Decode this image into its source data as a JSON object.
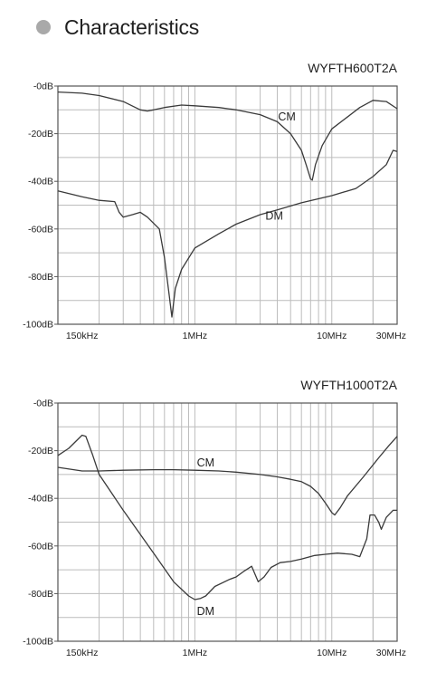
{
  "page": {
    "heading": "Characteristics"
  },
  "colors": {
    "bullet": "#a9a9a9",
    "grid": "#bcbcbc",
    "frame": "#555555",
    "curve": "#3a3a3a"
  },
  "chart_data": [
    {
      "type": "line",
      "title": "WYFTH600T2A",
      "x_scale": "log",
      "xlim": [
        0.1,
        30
      ],
      "ylim": [
        -100,
        0
      ],
      "x_ticks": [
        {
          "value": 0.15,
          "label": "150kHz"
        },
        {
          "value": 1,
          "label": "1MHz"
        },
        {
          "value": 10,
          "label": "10MHz"
        },
        {
          "value": 30,
          "label": "30MHz"
        }
      ],
      "y_ticks": [
        {
          "value": 0,
          "label": "-0dB"
        },
        {
          "value": -20,
          "label": "-20dB"
        },
        {
          "value": -40,
          "label": "-40dB"
        },
        {
          "value": -60,
          "label": "-60dB"
        },
        {
          "value": -80,
          "label": "-80dB"
        },
        {
          "value": -100,
          "label": "-100dB"
        }
      ],
      "grid": true,
      "series": [
        {
          "name": "CM",
          "points": [
            [
              0.1,
              -2.5
            ],
            [
              0.15,
              -3
            ],
            [
              0.2,
              -4
            ],
            [
              0.3,
              -6.5
            ],
            [
              0.4,
              -10
            ],
            [
              0.45,
              -10.5
            ],
            [
              0.5,
              -10
            ],
            [
              0.6,
              -9
            ],
            [
              0.8,
              -8
            ],
            [
              1,
              -8.3
            ],
            [
              1.5,
              -9
            ],
            [
              2,
              -10
            ],
            [
              3,
              -12
            ],
            [
              4,
              -15
            ],
            [
              5,
              -20
            ],
            [
              6,
              -27
            ],
            [
              6.5,
              -33
            ],
            [
              7,
              -39
            ],
            [
              7.2,
              -39.5
            ],
            [
              7.6,
              -33
            ],
            [
              8.5,
              -25
            ],
            [
              10,
              -18
            ],
            [
              13,
              -13
            ],
            [
              16,
              -9
            ],
            [
              20,
              -6
            ],
            [
              25,
              -6.5
            ],
            [
              30,
              -9.5
            ]
          ],
          "label_at": [
            4.7,
            -13
          ]
        },
        {
          "name": "DM",
          "points": [
            [
              0.1,
              -44
            ],
            [
              0.15,
              -46.5
            ],
            [
              0.2,
              -48
            ],
            [
              0.26,
              -48.5
            ],
            [
              0.28,
              -53
            ],
            [
              0.3,
              -55
            ],
            [
              0.35,
              -54
            ],
            [
              0.4,
              -53
            ],
            [
              0.45,
              -55
            ],
            [
              0.55,
              -60
            ],
            [
              0.6,
              -72
            ],
            [
              0.65,
              -88
            ],
            [
              0.68,
              -97
            ],
            [
              0.72,
              -85
            ],
            [
              0.8,
              -77
            ],
            [
              1,
              -68
            ],
            [
              1.5,
              -62
            ],
            [
              2,
              -58
            ],
            [
              3,
              -54
            ],
            [
              4,
              -52
            ],
            [
              6,
              -49
            ],
            [
              10,
              -46
            ],
            [
              15,
              -43
            ],
            [
              20,
              -38
            ],
            [
              25,
              -33
            ],
            [
              28,
              -27
            ],
            [
              30,
              -27.5
            ]
          ],
          "label_at": [
            3.8,
            -54.5
          ]
        }
      ]
    },
    {
      "type": "line",
      "title": "WYFTH1000T2A",
      "x_scale": "log",
      "xlim": [
        0.1,
        30
      ],
      "ylim": [
        -100,
        0
      ],
      "x_ticks": [
        {
          "value": 0.15,
          "label": "150kHz"
        },
        {
          "value": 1,
          "label": "1MHz"
        },
        {
          "value": 10,
          "label": "10MHz"
        },
        {
          "value": 30,
          "label": "30MHz"
        }
      ],
      "y_ticks": [
        {
          "value": 0,
          "label": "-0dB"
        },
        {
          "value": -20,
          "label": "-20dB"
        },
        {
          "value": -40,
          "label": "-40dB"
        },
        {
          "value": -60,
          "label": "-60dB"
        },
        {
          "value": -80,
          "label": "-80dB"
        },
        {
          "value": -100,
          "label": "-100dB"
        }
      ],
      "grid": true,
      "series": [
        {
          "name": "CM",
          "points": [
            [
              0.1,
              -27
            ],
            [
              0.15,
              -28.5
            ],
            [
              0.2,
              -28.5
            ],
            [
              0.3,
              -28.2
            ],
            [
              0.5,
              -28
            ],
            [
              0.7,
              -28
            ],
            [
              1,
              -28.2
            ],
            [
              1.5,
              -28.5
            ],
            [
              2,
              -29
            ],
            [
              3,
              -30
            ],
            [
              4,
              -31
            ],
            [
              5,
              -32
            ],
            [
              6,
              -33
            ],
            [
              7,
              -35
            ],
            [
              8,
              -38
            ],
            [
              9,
              -42
            ],
            [
              10,
              -46
            ],
            [
              10.5,
              -47
            ],
            [
              11.5,
              -44
            ],
            [
              13,
              -39
            ],
            [
              17,
              -31
            ],
            [
              22,
              -23
            ],
            [
              26,
              -18
            ],
            [
              30,
              -14
            ]
          ],
          "label_at": [
            1.2,
            -25
          ]
        },
        {
          "name": "DM",
          "points": [
            [
              0.1,
              -22
            ],
            [
              0.12,
              -19
            ],
            [
              0.15,
              -13.5
            ],
            [
              0.16,
              -14
            ],
            [
              0.18,
              -22
            ],
            [
              0.2,
              -30
            ],
            [
              0.3,
              -45
            ],
            [
              0.5,
              -63
            ],
            [
              0.7,
              -75
            ],
            [
              0.9,
              -81
            ],
            [
              1,
              -82.5
            ],
            [
              1.1,
              -82
            ],
            [
              1.2,
              -81
            ],
            [
              1.4,
              -77
            ],
            [
              1.8,
              -74
            ],
            [
              2,
              -73
            ],
            [
              2.3,
              -70.5
            ],
            [
              2.6,
              -68.5
            ],
            [
              2.9,
              -75
            ],
            [
              3.2,
              -73
            ],
            [
              3.6,
              -69
            ],
            [
              4.2,
              -67
            ],
            [
              5,
              -66.5
            ],
            [
              6,
              -65.5
            ],
            [
              7.5,
              -64
            ],
            [
              9,
              -63.5
            ],
            [
              11,
              -63
            ],
            [
              14,
              -63.5
            ],
            [
              16,
              -64.5
            ],
            [
              18,
              -57
            ],
            [
              19,
              -47
            ],
            [
              20.5,
              -47
            ],
            [
              22,
              -50
            ],
            [
              23,
              -53
            ],
            [
              25,
              -48
            ],
            [
              28,
              -45
            ],
            [
              30,
              -45
            ]
          ],
          "label_at": [
            1.2,
            -87.5
          ]
        }
      ]
    }
  ]
}
